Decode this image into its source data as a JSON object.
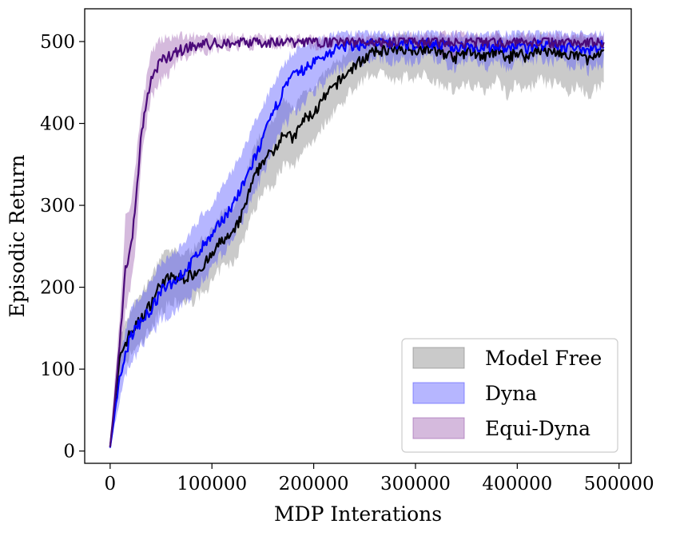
{
  "chart_data": {
    "type": "line",
    "xlabel": "MDP Interations",
    "ylabel": "Episodic Return",
    "xlim": [
      -25000,
      512000
    ],
    "ylim": [
      -15,
      540
    ],
    "xticks": [
      0,
      100000,
      200000,
      300000,
      400000,
      500000
    ],
    "yticks": [
      0,
      100,
      200,
      300,
      400,
      500
    ],
    "grid": false,
    "legend_position": "bottom-right",
    "series": [
      {
        "name": "Model Free",
        "line_color": "#000000",
        "band_color": "#808080",
        "x": [
          0,
          10000,
          20000,
          30000,
          40000,
          50000,
          60000,
          70000,
          80000,
          90000,
          100000,
          110000,
          120000,
          130000,
          140000,
          150000,
          160000,
          170000,
          180000,
          190000,
          200000,
          210000,
          220000,
          230000,
          240000,
          250000,
          260000,
          270000,
          280000,
          290000,
          300000,
          310000,
          320000,
          330000,
          340000,
          350000,
          360000,
          370000,
          380000,
          390000,
          400000,
          410000,
          420000,
          430000,
          440000,
          450000,
          460000,
          470000,
          485000
        ],
        "y": [
          5,
          118,
          145,
          160,
          180,
          205,
          212,
          210,
          215,
          225,
          238,
          258,
          262,
          290,
          328,
          355,
          365,
          390,
          380,
          405,
          412,
          430,
          445,
          458,
          470,
          480,
          487,
          490,
          488,
          492,
          490,
          492,
          488,
          485,
          480,
          488,
          486,
          480,
          490,
          478,
          488,
          480,
          492,
          486,
          488,
          480,
          484,
          478,
          485
        ],
        "lower": [
          3,
          92,
          118,
          130,
          150,
          172,
          180,
          180,
          182,
          192,
          205,
          225,
          228,
          255,
          290,
          318,
          325,
          350,
          345,
          370,
          380,
          398,
          415,
          428,
          445,
          455,
          462,
          462,
          448,
          458,
          455,
          460,
          450,
          448,
          440,
          450,
          445,
          440,
          455,
          435,
          450,
          438,
          455,
          448,
          450,
          438,
          445,
          435,
          450
        ],
        "upper": [
          8,
          142,
          172,
          192,
          210,
          238,
          245,
          240,
          245,
          258,
          270,
          290,
          298,
          325,
          365,
          392,
          405,
          428,
          418,
          438,
          445,
          460,
          472,
          482,
          492,
          500,
          505,
          508,
          505,
          507,
          506,
          507,
          505,
          505,
          502,
          506,
          505,
          502,
          507,
          500,
          506,
          502,
          508,
          505,
          506,
          502,
          505,
          500,
          505
        ]
      },
      {
        "name": "Dyna",
        "line_color": "#0000ff",
        "band_color": "#5050ff",
        "x": [
          0,
          10000,
          20000,
          30000,
          40000,
          50000,
          60000,
          70000,
          80000,
          90000,
          100000,
          110000,
          120000,
          130000,
          140000,
          150000,
          160000,
          170000,
          180000,
          190000,
          200000,
          210000,
          220000,
          230000,
          240000,
          250000,
          260000,
          270000,
          280000,
          290000,
          300000,
          310000,
          320000,
          330000,
          340000,
          350000,
          360000,
          370000,
          380000,
          390000,
          400000,
          410000,
          420000,
          430000,
          440000,
          450000,
          460000,
          470000,
          485000
        ],
        "y": [
          4,
          95,
          140,
          158,
          172,
          195,
          205,
          215,
          230,
          248,
          262,
          282,
          300,
          322,
          352,
          380,
          412,
          440,
          458,
          465,
          475,
          482,
          490,
          494,
          495,
          497,
          498,
          497,
          496,
          497,
          496,
          499,
          497,
          494,
          492,
          496,
          494,
          492,
          497,
          490,
          496,
          492,
          497,
          494,
          495,
          492,
          494,
          490,
          495
        ],
        "lower": [
          2,
          68,
          108,
          128,
          140,
          160,
          168,
          178,
          190,
          208,
          222,
          240,
          258,
          280,
          310,
          338,
          368,
          395,
          412,
          425,
          440,
          450,
          462,
          470,
          472,
          478,
          480,
          478,
          476,
          478,
          474,
          482,
          478,
          472,
          468,
          478,
          472,
          468,
          480,
          465,
          478,
          470,
          480,
          474,
          478,
          470,
          474,
          465,
          475
        ],
        "upper": [
          7,
          122,
          172,
          190,
          205,
          230,
          240,
          252,
          268,
          288,
          302,
          322,
          342,
          365,
          395,
          420,
          448,
          472,
          488,
          495,
          500,
          505,
          508,
          510,
          510,
          511,
          512,
          511,
          511,
          511,
          511,
          512,
          511,
          510,
          510,
          511,
          510,
          510,
          511,
          509,
          511,
          510,
          511,
          510,
          511,
          510,
          510,
          509,
          510
        ]
      },
      {
        "name": "Equi-Dyna",
        "line_color": "#4b0a7a",
        "band_color": "#9a5aae",
        "x": [
          0,
          5000,
          10000,
          15000,
          20000,
          25000,
          30000,
          35000,
          40000,
          45000,
          50000,
          60000,
          70000,
          80000,
          90000,
          100000,
          120000,
          140000,
          160000,
          180000,
          200000,
          220000,
          240000,
          260000,
          280000,
          300000,
          320000,
          340000,
          360000,
          380000,
          400000,
          420000,
          440000,
          460000,
          485000
        ],
        "y": [
          5,
          70,
          140,
          225,
          245,
          300,
          378,
          420,
          455,
          465,
          475,
          484,
          490,
          494,
          496,
          497,
          499,
          500,
          500,
          500,
          500,
          500,
          500,
          500,
          500,
          500,
          499,
          498,
          500,
          499,
          500,
          500,
          499,
          500,
          500
        ],
        "lower": [
          3,
          45,
          108,
          172,
          198,
          250,
          340,
          395,
          432,
          440,
          452,
          466,
          478,
          486,
          488,
          490,
          494,
          496,
          496,
          496,
          496,
          496,
          496,
          496,
          496,
          496,
          488,
          482,
          494,
          488,
          495,
          496,
          490,
          494,
          496
        ],
        "upper": [
          8,
          95,
          170,
          288,
          292,
          350,
          415,
          448,
          485,
          495,
          503,
          506,
          507,
          507,
          507,
          507,
          506,
          505,
          505,
          505,
          505,
          505,
          506,
          506,
          506,
          506,
          508,
          509,
          506,
          508,
          506,
          506,
          508,
          506,
          506
        ]
      }
    ]
  }
}
